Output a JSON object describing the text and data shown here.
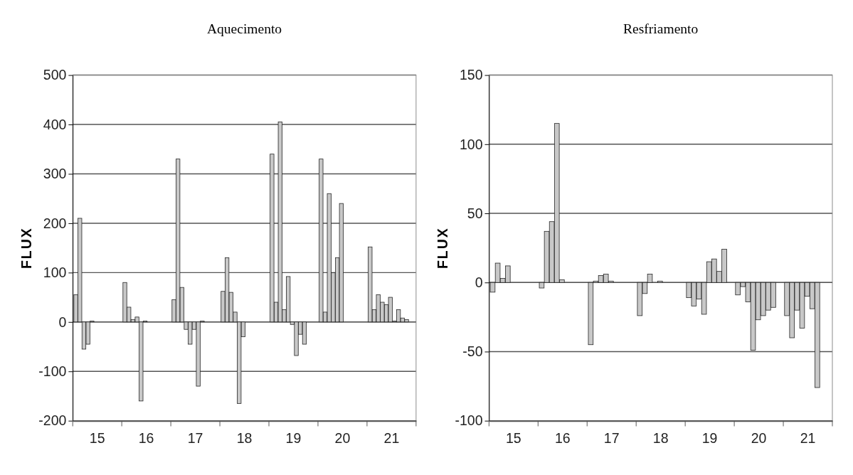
{
  "chart_data": [
    {
      "type": "bar",
      "title": "Aquecimento",
      "ylabel": "FLUX",
      "categories": [
        "15",
        "16",
        "17",
        "18",
        "19",
        "20",
        "21"
      ],
      "ylim": [
        -200,
        500
      ],
      "yticks": [
        -200,
        -100,
        0,
        100,
        200,
        300,
        400,
        500
      ],
      "grid": "y",
      "series": [
        {
          "color": "#c8c8c8",
          "values": [
            55,
            80,
            45,
            62,
            340,
            330,
            152
          ]
        },
        {
          "color": "#c8c8c8",
          "values": [
            210,
            30,
            330,
            130,
            40,
            20,
            25
          ]
        },
        {
          "color": "#c8c8c8",
          "values": [
            -55,
            5,
            70,
            60,
            405,
            260,
            55
          ]
        },
        {
          "color": "#c8c8c8",
          "values": [
            -45,
            10,
            -15,
            20,
            25,
            100,
            40
          ]
        },
        {
          "color": "#c8c8c8",
          "values": [
            2,
            -160,
            -45,
            -165,
            92,
            130,
            35
          ]
        },
        {
          "color": "#c8c8c8",
          "values": [
            null,
            2,
            -15,
            -30,
            -5,
            240,
            50
          ]
        },
        {
          "color": "#c8c8c8",
          "values": [
            null,
            null,
            -130,
            null,
            -68,
            null,
            2
          ]
        },
        {
          "color": "#c8c8c8",
          "values": [
            null,
            null,
            2,
            null,
            -25,
            null,
            25
          ]
        },
        {
          "color": "#c8c8c8",
          "values": [
            null,
            null,
            null,
            null,
            -45,
            null,
            8
          ]
        },
        {
          "color": "#c8c8c8",
          "values": [
            null,
            null,
            null,
            null,
            null,
            null,
            5
          ]
        }
      ]
    },
    {
      "type": "bar",
      "title": "Resfriamento",
      "ylabel": "FLUX",
      "categories": [
        "15",
        "16",
        "17",
        "18",
        "19",
        "20",
        "21"
      ],
      "ylim": [
        -100,
        150
      ],
      "yticks": [
        -100,
        -50,
        0,
        50,
        100,
        150
      ],
      "grid": "y",
      "series": [
        {
          "color": "#c8c8c8",
          "values": [
            -7,
            -4,
            -45,
            -24,
            -11,
            -9,
            -24
          ]
        },
        {
          "color": "#c8c8c8",
          "values": [
            14,
            37,
            1,
            -8,
            -17,
            -3,
            -40
          ]
        },
        {
          "color": "#c8c8c8",
          "values": [
            3,
            44,
            5,
            6,
            -12,
            -14,
            -20
          ]
        },
        {
          "color": "#c8c8c8",
          "values": [
            12,
            115,
            6,
            null,
            -23,
            -49,
            -33
          ]
        },
        {
          "color": "#c8c8c8",
          "values": [
            null,
            2,
            1,
            1,
            15,
            -27,
            -10
          ]
        },
        {
          "color": "#c8c8c8",
          "values": [
            null,
            null,
            null,
            null,
            17,
            -24,
            -19
          ]
        },
        {
          "color": "#c8c8c8",
          "values": [
            null,
            null,
            null,
            null,
            8,
            -20,
            -76
          ]
        },
        {
          "color": "#c8c8c8",
          "values": [
            null,
            null,
            null,
            null,
            24,
            -18,
            null
          ]
        }
      ]
    }
  ]
}
